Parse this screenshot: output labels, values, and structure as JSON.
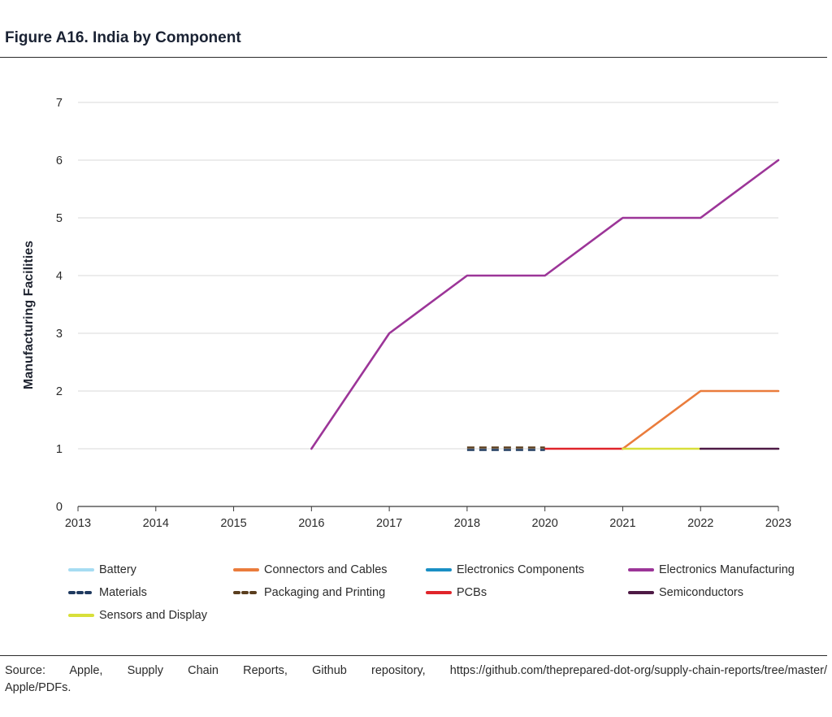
{
  "figure": {
    "title": "Figure A16. India by Component"
  },
  "source": {
    "line1": "Source: Apple, Supply Chain Reports, Github repository, https://github.com/theprepared-dot-org/supply-chain-reports/tree/master/",
    "line2": "Apple/PDFs."
  },
  "chart_data": {
    "type": "line",
    "title": "Figure A16. India by Component",
    "xlabel": "",
    "ylabel": "Manufacturing Facilities",
    "x": [
      "2013",
      "2014",
      "2015",
      "2016",
      "2017",
      "2018",
      "2020",
      "2021",
      "2022",
      "2023"
    ],
    "ylim": [
      0,
      7
    ],
    "yticks": [
      0,
      1,
      2,
      3,
      4,
      5,
      6,
      7
    ],
    "grid": "horizontal",
    "legend_position": "bottom",
    "series": [
      {
        "name": "Battery",
        "color": "#a6dcf2",
        "dash": "solid",
        "values": [
          null,
          null,
          null,
          null,
          null,
          null,
          null,
          null,
          null,
          null
        ]
      },
      {
        "name": "Connectors and Cables",
        "color": "#ea7c3c",
        "dash": "solid",
        "values": [
          null,
          null,
          null,
          null,
          null,
          null,
          null,
          1,
          2,
          2
        ]
      },
      {
        "name": "Electronics Components",
        "color": "#1a8fc4",
        "dash": "solid",
        "values": [
          null,
          null,
          null,
          null,
          null,
          null,
          null,
          null,
          null,
          null
        ]
      },
      {
        "name": "Electronics Manufacturing",
        "color": "#9c3598",
        "dash": "solid",
        "values": [
          null,
          null,
          null,
          1,
          3,
          4,
          4,
          5,
          5,
          6
        ]
      },
      {
        "name": "Materials",
        "color": "#1f3a5f",
        "dash": "dashed",
        "values": [
          null,
          null,
          null,
          null,
          null,
          1,
          1,
          null,
          null,
          null
        ]
      },
      {
        "name": "Packaging and Printing",
        "color": "#5a3e1e",
        "dash": "dashed",
        "values": [
          null,
          null,
          null,
          null,
          null,
          1,
          1,
          null,
          null,
          null
        ]
      },
      {
        "name": "PCBs",
        "color": "#e0252b",
        "dash": "solid",
        "values": [
          null,
          null,
          null,
          null,
          null,
          null,
          1,
          1,
          null,
          null
        ]
      },
      {
        "name": "Semiconductors",
        "color": "#4e1a45",
        "dash": "solid",
        "values": [
          null,
          null,
          null,
          null,
          null,
          null,
          null,
          null,
          1,
          1
        ]
      },
      {
        "name": "Sensors and Display",
        "color": "#d8df3a",
        "dash": "solid",
        "values": [
          null,
          null,
          null,
          null,
          null,
          null,
          null,
          1,
          1,
          null
        ]
      }
    ]
  }
}
